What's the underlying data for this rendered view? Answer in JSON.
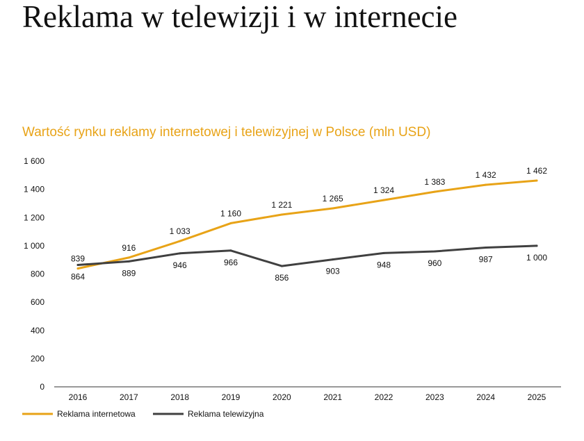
{
  "page": {
    "title": "Reklama w telewizji i w internecie"
  },
  "chart_data": {
    "type": "line",
    "title": "Wartość rynku reklamy internetowej i telewizyjnej w Polsce (mln USD)",
    "xlabel": "",
    "ylabel": "",
    "categories": [
      "2016",
      "2017",
      "2018",
      "2019",
      "2020",
      "2021",
      "2022",
      "2023",
      "2024",
      "2025"
    ],
    "ylim": [
      0,
      1600
    ],
    "yticks": [
      0,
      200,
      400,
      600,
      800,
      1000,
      1200,
      1400,
      1600
    ],
    "ytick_labels": [
      "0",
      "200",
      "400",
      "600",
      "800",
      "1 000",
      "1 200",
      "1 400",
      "1 600"
    ],
    "grid": false,
    "legend_position": "bottom-left",
    "series": [
      {
        "name": "Reklama internetowa",
        "color": "#E8A317",
        "label_side": "above",
        "values": [
          839,
          916,
          1033,
          1160,
          1221,
          1265,
          1324,
          1383,
          1432,
          1462
        ],
        "labels": [
          "839",
          "916",
          "1 033",
          "1 160",
          "1 221",
          "1 265",
          "1 324",
          "1 383",
          "1 432",
          "1 462"
        ]
      },
      {
        "name": "Reklama telewizyjna",
        "color": "#404040",
        "label_side": "below",
        "values": [
          864,
          889,
          946,
          966,
          856,
          903,
          948,
          960,
          987,
          1000
        ],
        "labels": [
          "864",
          "889",
          "946",
          "966",
          "856",
          "903",
          "948",
          "960",
          "987",
          "1 000"
        ]
      }
    ]
  }
}
